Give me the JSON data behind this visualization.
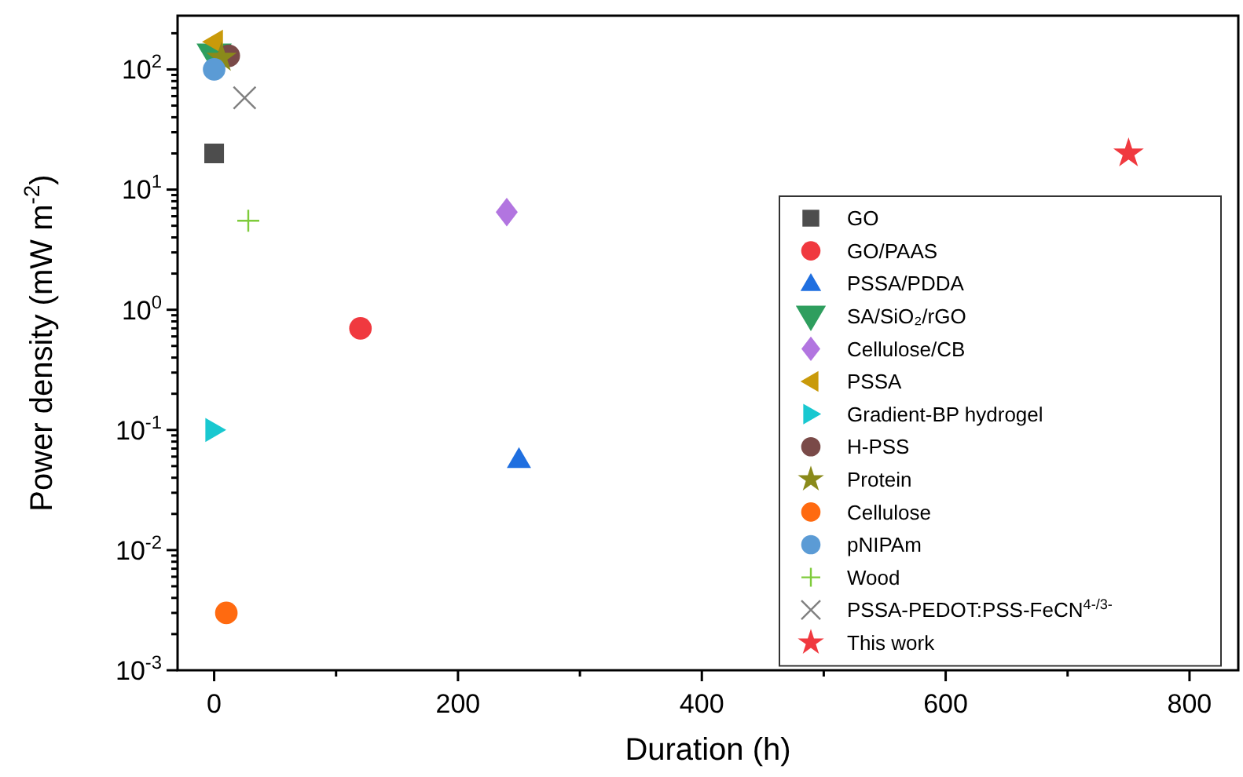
{
  "chart_data": {
    "type": "scatter",
    "xlabel": "Duration (h)",
    "ylabel": "Power density (mW m$^{-2}$)",
    "log": "y",
    "xlim": [
      -30,
      840
    ],
    "ylim": [
      0.001,
      280
    ],
    "xticks": [
      0,
      {
        "value": 100,
        "label": null
      },
      200,
      {
        "value": 300,
        "label": null
      },
      400,
      {
        "value": 500,
        "label": null
      },
      600,
      {
        "value": 700,
        "label": null
      },
      800
    ],
    "yticks": [
      {
        "value": 0.001,
        "label": "10$^{-3}$"
      },
      {
        "value": 0.002,
        "label": null
      },
      {
        "value": 0.003,
        "label": null
      },
      {
        "value": 0.004,
        "label": null
      },
      {
        "value": 0.005,
        "label": null
      },
      {
        "value": 0.006,
        "label": null
      },
      {
        "value": 0.007,
        "label": null
      },
      {
        "value": 0.008,
        "label": null
      },
      {
        "value": 0.009,
        "label": null
      },
      {
        "value": 0.01,
        "label": "10$^{-2}$"
      },
      {
        "value": 0.02,
        "label": null
      },
      {
        "value": 0.03,
        "label": null
      },
      {
        "value": 0.04,
        "label": null
      },
      {
        "value": 0.05,
        "label": null
      },
      {
        "value": 0.06,
        "label": null
      },
      {
        "value": 0.07,
        "label": null
      },
      {
        "value": 0.08,
        "label": null
      },
      {
        "value": 0.09,
        "label": null
      },
      {
        "value": 0.1,
        "label": "10$^{-1}$"
      },
      {
        "value": 0.2,
        "label": null
      },
      {
        "value": 0.3,
        "label": null
      },
      {
        "value": 0.4,
        "label": null
      },
      {
        "value": 0.5,
        "label": null
      },
      {
        "value": 0.6,
        "label": null
      },
      {
        "value": 0.7,
        "label": null
      },
      {
        "value": 0.8,
        "label": null
      },
      {
        "value": 0.9,
        "label": null
      },
      {
        "value": 1,
        "label": "10$^{0}$"
      },
      {
        "value": 2,
        "label": null
      },
      {
        "value": 3,
        "label": null
      },
      {
        "value": 4,
        "label": null
      },
      {
        "value": 5,
        "label": null
      },
      {
        "value": 6,
        "label": null
      },
      {
        "value": 7,
        "label": null
      },
      {
        "value": 8,
        "label": null
      },
      {
        "value": 9,
        "label": null
      },
      {
        "value": 10,
        "label": "10$^{1}$"
      },
      {
        "value": 20,
        "label": null
      },
      {
        "value": 30,
        "label": null
      },
      {
        "value": 40,
        "label": null
      },
      {
        "value": 50,
        "label": null
      },
      {
        "value": 60,
        "label": null
      },
      {
        "value": 70,
        "label": null
      },
      {
        "value": 80,
        "label": null
      },
      {
        "value": 90,
        "label": null
      },
      {
        "value": 100,
        "label": "10$^{2}$"
      },
      {
        "value": 200,
        "label": null
      }
    ],
    "grid": false,
    "legend": "right",
    "series": [
      {
        "name": "GO",
        "color": "#4d4d4d",
        "marker": "square",
        "x": [
          0
        ],
        "values": [
          20
        ]
      },
      {
        "name": "GO/PAAS",
        "color": "#f0393f",
        "marker": "circle",
        "x": [
          120
        ],
        "values": [
          0.7
        ]
      },
      {
        "name": "PSSA/PDDA",
        "color": "#1f6fe0",
        "marker": "triangle",
        "x": [
          250
        ],
        "values": [
          0.057
        ]
      },
      {
        "name": "SA/SiO₂/rGO",
        "color": "#2e9e5e",
        "marker": "triangle-down",
        "x": [
          0
        ],
        "values": [
          130
        ]
      },
      {
        "name": "Cellulose/CB",
        "color": "#b275e0",
        "marker": "diamond",
        "x": [
          240
        ],
        "values": [
          6.5
        ]
      },
      {
        "name": "PSSA",
        "color": "#c99a0a",
        "marker": "triangle-left",
        "x": [
          0
        ],
        "values": [
          170
        ]
      },
      {
        "name": "Gradient-BP hydrogel",
        "color": "#19c8d0",
        "marker": "triangle-right",
        "x": [
          0
        ],
        "values": [
          0.1
        ]
      },
      {
        "name": "H-PSS",
        "color": "#7a4a48",
        "x": [
          12
        ],
        "values": [
          130
        ]
      },
      {
        "name": "Protein",
        "color": "#8a8a1a",
        "marker": "star",
        "x": [
          6
        ],
        "values": [
          125
        ]
      },
      {
        "name": "Cellulose",
        "color": "#ff6a10",
        "x": [
          10
        ],
        "values": [
          0.003
        ]
      },
      {
        "name": "pNIPAm",
        "color": "#5b9bd5",
        "marker": "circle",
        "x": [
          0
        ],
        "values": [
          100
        ]
      },
      {
        "name": "Wood",
        "color": "#7ecb3a",
        "marker": "plus",
        "x": [
          28
        ],
        "values": [
          5.5
        ]
      },
      {
        "name": "PSSA-PEDOT:PSS-FeCN$^{4-/3-}$",
        "color": "#808080",
        "marker": "cross",
        "x": [
          25
        ],
        "values": [
          58
        ]
      },
      {
        "name": "This work",
        "color": "#f0393f",
        "marker": "star",
        "x": [
          750
        ],
        "values": [
          20
        ]
      }
    ]
  }
}
